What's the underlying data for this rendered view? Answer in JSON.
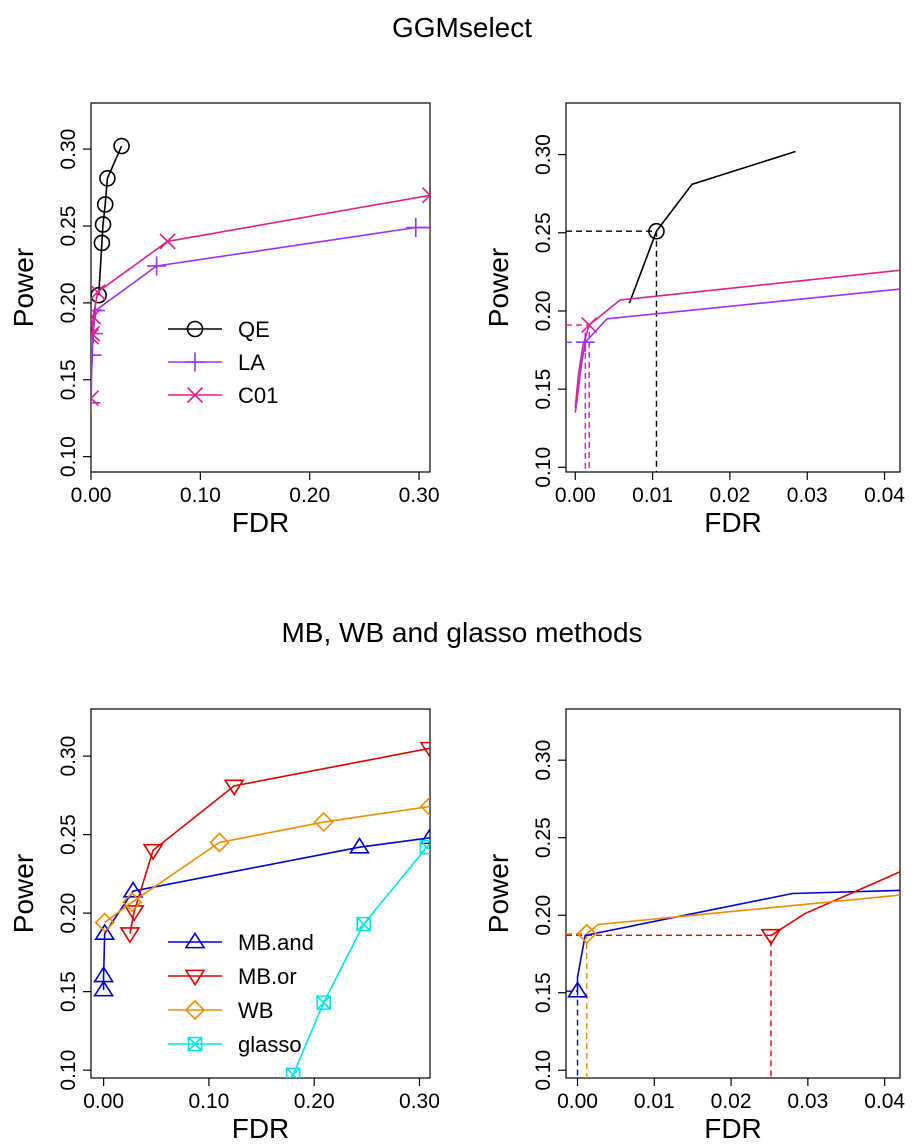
{
  "titles": {
    "top": "GGMselect",
    "bottom": "MB, WB and glasso methods"
  },
  "colors": {
    "QE": "#000000",
    "LA": "#9b30ff",
    "C01": "#e0208c",
    "MB.and": "#0000cd",
    "MB.or": "#e00000",
    "WB": "#f08c00",
    "glasso": "#00e5e5"
  },
  "chart_data": [
    {
      "type": "line",
      "xlabel": "FDR",
      "ylabel": "Power",
      "xlim": [
        0,
        0.31
      ],
      "ylim": [
        0.09,
        0.33
      ],
      "xticks": [
        "0.00",
        "0.10",
        "0.20",
        "0.30"
      ],
      "yticks": [
        "0.10",
        "0.15",
        "0.20",
        "0.25",
        "0.30"
      ],
      "legend_position": "center",
      "series": [
        {
          "name": "QE",
          "marker": "circle",
          "x": [
            0.007,
            0.01,
            0.011,
            0.013,
            0.015,
            0.028
          ],
          "y": [
            0.205,
            0.239,
            0.251,
            0.264,
            0.281,
            0.302
          ]
        },
        {
          "name": "LA",
          "marker": "plus",
          "x": [
            0.0,
            0.001,
            0.002,
            0.004,
            0.06,
            0.297,
            0.31
          ],
          "y": [
            0.135,
            0.166,
            0.18,
            0.195,
            0.224,
            0.249,
            0.249
          ]
        },
        {
          "name": "C01",
          "marker": "cross",
          "x": [
            0.0,
            0.0,
            0.001,
            0.002,
            0.006,
            0.07,
            0.31
          ],
          "y": [
            0.138,
            0.178,
            0.18,
            0.191,
            0.207,
            0.24,
            0.27
          ]
        }
      ]
    },
    {
      "type": "line",
      "xlabel": "FDR",
      "ylabel": "Power",
      "xlim": [
        -0.0012,
        0.042
      ],
      "ylim": [
        0.097,
        0.333
      ],
      "xticks": [
        "0.00",
        "0.01",
        "0.02",
        "0.03",
        "0.04"
      ],
      "yticks": [
        "0.10",
        "0.15",
        "0.20",
        "0.25",
        "0.30"
      ],
      "series": [
        {
          "name": "QE",
          "x": [
            0.007,
            0.0105,
            0.0151,
            0.0285
          ],
          "y": [
            0.205,
            0.251,
            0.281,
            0.302
          ]
        },
        {
          "name": "LA",
          "x": [
            0.0,
            0.0004,
            0.0008,
            0.0013,
            0.0041,
            0.042
          ],
          "y": [
            0.135,
            0.15,
            0.166,
            0.18,
            0.195,
            0.214
          ]
        },
        {
          "name": "C01",
          "x": [
            0.0,
            0.0004,
            0.001,
            0.0018,
            0.0058,
            0.042
          ],
          "y": [
            0.138,
            0.159,
            0.178,
            0.191,
            0.207,
            0.226
          ]
        }
      ],
      "markers": [
        {
          "series": "QE",
          "marker": "circle",
          "x": 0.0105,
          "y": 0.251
        },
        {
          "series": "C01",
          "marker": "cross",
          "x": 0.0018,
          "y": 0.191
        },
        {
          "series": "LA",
          "marker": "plus",
          "x": 0.0013,
          "y": 0.18
        }
      ],
      "guides": [
        {
          "series": "QE",
          "x": 0.0105,
          "y": 0.251
        },
        {
          "series": "C01",
          "x": 0.0018,
          "y": 0.191
        },
        {
          "series": "LA",
          "x": 0.0013,
          "y": 0.18
        }
      ]
    },
    {
      "type": "line",
      "xlabel": "FDR",
      "ylabel": "Power",
      "xlim": [
        -0.012,
        0.31
      ],
      "ylim": [
        0.095,
        0.33
      ],
      "xticks": [
        "0.00",
        "0.10",
        "0.20",
        "0.30"
      ],
      "yticks": [
        "0.10",
        "0.15",
        "0.20",
        "0.25",
        "0.30"
      ],
      "legend_position": "bottom-center",
      "series": [
        {
          "name": "MB.and",
          "marker": "triangle-up",
          "x": [
            0.0,
            0.0,
            0.001,
            0.028,
            0.243,
            0.31
          ],
          "y": [
            0.151,
            0.16,
            0.187,
            0.214,
            0.242,
            0.248
          ]
        },
        {
          "name": "MB.or",
          "marker": "triangle-down",
          "x": [
            0.025,
            0.029,
            0.047,
            0.124,
            0.31
          ],
          "y": [
            0.187,
            0.201,
            0.24,
            0.281,
            0.305
          ]
        },
        {
          "name": "WB",
          "marker": "diamond",
          "x": [
            0.001,
            0.027,
            0.11,
            0.209,
            0.31
          ],
          "y": [
            0.194,
            0.207,
            0.245,
            0.258,
            0.268
          ]
        },
        {
          "name": "glasso",
          "marker": "boxed-cross",
          "x": [
            0.18,
            0.209,
            0.247,
            0.307
          ],
          "y": [
            0.097,
            0.143,
            0.193,
            0.242
          ]
        }
      ]
    },
    {
      "type": "line",
      "xlabel": "FDR",
      "ylabel": "Power",
      "xlim": [
        -0.0015,
        0.042
      ],
      "ylim": [
        0.095,
        0.333
      ],
      "xticks": [
        "0.00",
        "0.01",
        "0.02",
        "0.03",
        "0.04"
      ],
      "yticks": [
        "0.10",
        "0.15",
        "0.20",
        "0.25",
        "0.30"
      ],
      "series": [
        {
          "name": "MB.and",
          "x": [
            0.0,
            0.0,
            0.001,
            0.028,
            0.042
          ],
          "y": [
            0.151,
            0.16,
            0.187,
            0.214,
            0.216
          ]
        },
        {
          "name": "MB.or",
          "x": [
            0.0252,
            0.0296,
            0.042
          ],
          "y": [
            0.187,
            0.201,
            0.228
          ]
        },
        {
          "name": "WB",
          "x": [
            0.0012,
            0.0027,
            0.042
          ],
          "y": [
            0.188,
            0.194,
            0.213
          ]
        }
      ],
      "markers": [
        {
          "series": "MB.and",
          "marker": "triangle-up",
          "x": 0.0,
          "y": 0.151
        },
        {
          "series": "WB",
          "marker": "diamond",
          "x": 0.0012,
          "y": 0.188
        },
        {
          "series": "MB.or",
          "marker": "triangle-down",
          "x": 0.0252,
          "y": 0.187
        }
      ],
      "guides": [
        {
          "series": "MB.and",
          "x": 0.0,
          "y": 0.151
        },
        {
          "series": "WB",
          "x": 0.0012,
          "y": 0.188
        },
        {
          "series": "MB.or",
          "x": 0.0252,
          "y": 0.187
        }
      ]
    }
  ]
}
